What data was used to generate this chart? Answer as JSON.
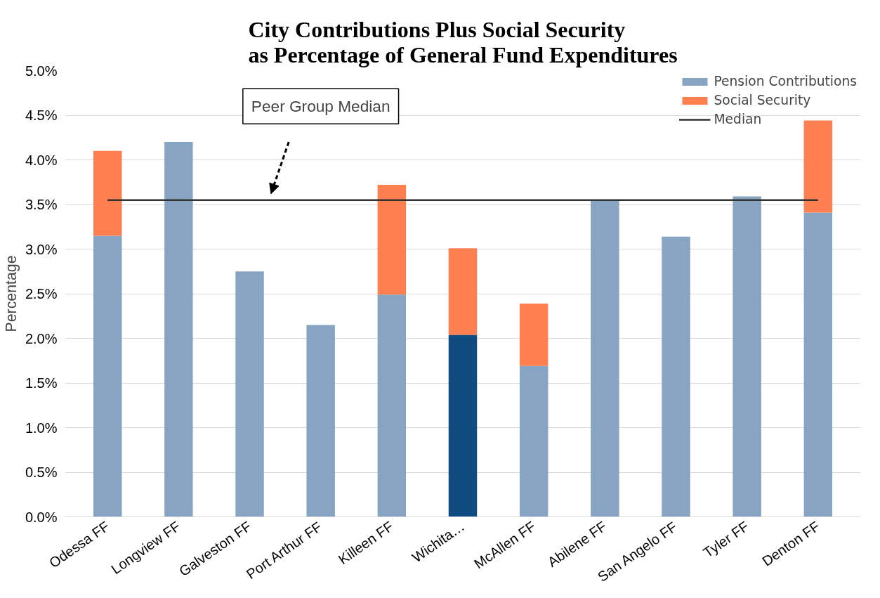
{
  "chart_data": {
    "type": "bar",
    "stacked": true,
    "title": "City Contributions Plus Social Security\nas Percentage of General Fund Expenditures",
    "ylabel": "Percentage",
    "categories": [
      "Odessa FF",
      "Longview FF",
      "Galveston FF",
      "Port Arthur FF",
      "Killeen FF",
      "Wichita…",
      "McAllen FF",
      "Abilene FF",
      "San Angelo FF",
      "Tyler FF",
      "Denton FF"
    ],
    "series": [
      {
        "name": "Pension Contributions",
        "color": "#87a5c2",
        "colors": [
          "#87a5c2",
          "#87a5c2",
          "#87a5c2",
          "#87a5c2",
          "#87a5c2",
          "#104c80",
          "#87a5c2",
          "#87a5c2",
          "#87a5c2",
          "#87a5c2",
          "#87a5c2"
        ],
        "values": [
          3.15,
          4.2,
          2.75,
          2.15,
          2.49,
          2.04,
          1.69,
          3.55,
          3.14,
          3.59,
          3.41
        ]
      },
      {
        "name": "Social Security",
        "color": "#ff7f50",
        "values": [
          0.95,
          null,
          null,
          null,
          1.23,
          0.97,
          0.7,
          null,
          null,
          null,
          1.03
        ]
      },
      {
        "name": "Median",
        "type": "line",
        "color": "#333333",
        "values": [
          3.55,
          3.55,
          3.55,
          3.55,
          3.55,
          3.55,
          3.55,
          3.55,
          3.55,
          3.55,
          3.55
        ]
      }
    ],
    "ylim": [
      0,
      5
    ],
    "yticks": [
      {
        "value": 0,
        "label": "0.0%"
      },
      {
        "value": 0.5,
        "label": "0.5%"
      },
      {
        "value": 1,
        "label": "1.0%"
      },
      {
        "value": 1.5,
        "label": "1.5%"
      },
      {
        "value": 2,
        "label": "2.0%"
      },
      {
        "value": 2.5,
        "label": "2.5%"
      },
      {
        "value": 3,
        "label": "3.0%"
      },
      {
        "value": 3.5,
        "label": "3.5%"
      },
      {
        "value": 4,
        "label": "4.0%"
      },
      {
        "value": 4.5,
        "label": "4.5%"
      },
      {
        "value": 5,
        "label": "5.0%"
      }
    ],
    "grid": "y",
    "legend": "top right",
    "annotations": [
      "Peer Group Median"
    ]
  }
}
